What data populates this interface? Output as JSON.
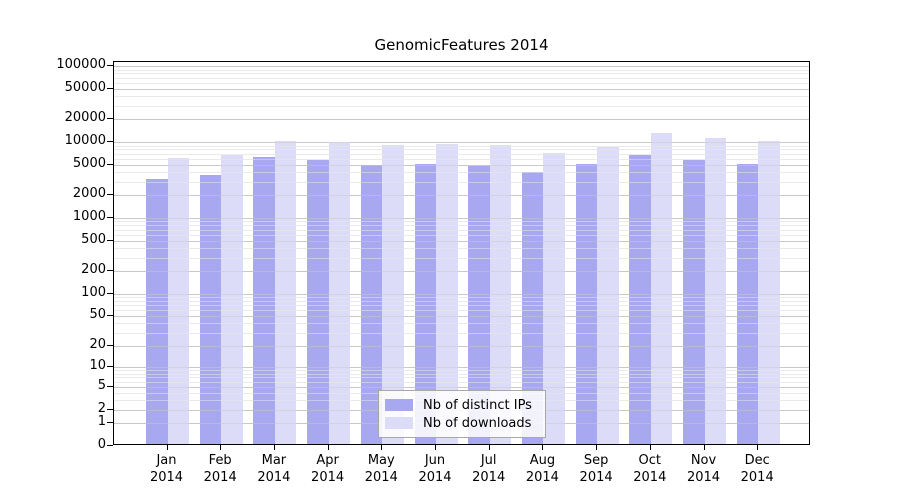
{
  "title": "GenomicFeatures 2014",
  "chart_data": {
    "type": "bar",
    "title": "GenomicFeatures 2014",
    "categories": [
      "Jan 2014",
      "Feb 2014",
      "Mar 2014",
      "Apr 2014",
      "May 2014",
      "Jun 2014",
      "Jul 2014",
      "Aug 2014",
      "Sep 2014",
      "Oct 2014",
      "Nov 2014",
      "Dec 2014"
    ],
    "x_tick_lines": [
      [
        "Jan",
        "2014"
      ],
      [
        "Feb",
        "2014"
      ],
      [
        "Mar",
        "2014"
      ],
      [
        "Apr",
        "2014"
      ],
      [
        "May",
        "2014"
      ],
      [
        "Jun",
        "2014"
      ],
      [
        "Jul",
        "2014"
      ],
      [
        "Aug",
        "2014"
      ],
      [
        "Sep",
        "2014"
      ],
      [
        "Oct",
        "2014"
      ],
      [
        "Nov",
        "2014"
      ],
      [
        "Dec",
        "2014"
      ]
    ],
    "series": [
      {
        "name": "Nb of distinct IPs",
        "color": "#a8a8f0",
        "values": [
          3100,
          3500,
          6000,
          5400,
          4700,
          4900,
          4600,
          3800,
          4800,
          6300,
          5400,
          4900
        ]
      },
      {
        "name": "Nb of downloads",
        "color": "#dcdcf8",
        "values": [
          5800,
          6300,
          9800,
          9500,
          8500,
          8900,
          8600,
          6800,
          8100,
          12400,
          10700,
          9700
        ]
      }
    ],
    "xlabel": "",
    "ylabel": "",
    "yscale": "log1p",
    "ylim": [
      0,
      100000
    ],
    "yticks": [
      0,
      1,
      2,
      5,
      10,
      20,
      50,
      100,
      200,
      500,
      1000,
      2000,
      5000,
      10000,
      20000,
      50000,
      100000
    ],
    "grid": true,
    "legend_position": "bottom-center",
    "colors": {
      "bar_distinct_ips": "#a8a8f0",
      "bar_downloads": "#dcdcf8",
      "grid_major": "#c9c9c9",
      "grid_minor": "#eaeaea",
      "axis": "#000000",
      "background": "#ffffff"
    }
  }
}
